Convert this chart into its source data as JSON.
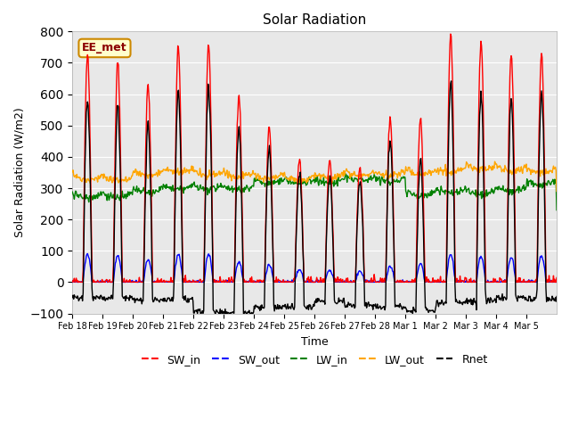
{
  "title": "Solar Radiation",
  "xlabel": "Time",
  "ylabel": "Solar Radiation (W/m2)",
  "ylim": [
    -100,
    800
  ],
  "yticks": [
    -100,
    0,
    100,
    200,
    300,
    400,
    500,
    600,
    700,
    800
  ],
  "background_color": "#ffffff",
  "plot_bg_color": "#e8e8e8",
  "annotation_text": "EE_met",
  "annotation_bg": "#ffffcc",
  "annotation_border": "#cc8800",
  "figsize": [
    6.4,
    4.8
  ],
  "dpi": 100,
  "xtick_labels": [
    "Feb 18",
    "Feb 19",
    "Feb 20",
    "Feb 21",
    "Feb 22",
    "Feb 23",
    "Feb 24",
    "Feb 25",
    "Feb 26",
    "Feb 27",
    "Feb 28",
    "Mar 1",
    "Mar 2",
    "Mar 3",
    "Mar 4",
    "Mar 5"
  ],
  "days": 16,
  "pts_per_day": 48,
  "sw_in_peaks": [
    730,
    700,
    625,
    750,
    760,
    600,
    490,
    390,
    390,
    370,
    525,
    520,
    790,
    770,
    725,
    730
  ],
  "sw_out_peaks": [
    90,
    85,
    70,
    90,
    90,
    65,
    55,
    40,
    40,
    35,
    50,
    60,
    90,
    80,
    80,
    85
  ],
  "lw_in_base": [
    285,
    285,
    300,
    310,
    310,
    310,
    330,
    330,
    330,
    340,
    335,
    290,
    300,
    295,
    305,
    325
  ],
  "lw_out_base": [
    340,
    340,
    355,
    365,
    355,
    350,
    345,
    340,
    345,
    355,
    355,
    360,
    365,
    375,
    370,
    365
  ],
  "rnet_night": [
    -50,
    -50,
    -55,
    -55,
    -95,
    -100,
    -80,
    -80,
    -60,
    -75,
    -80,
    -90,
    -65,
    -60,
    -50,
    -55
  ]
}
